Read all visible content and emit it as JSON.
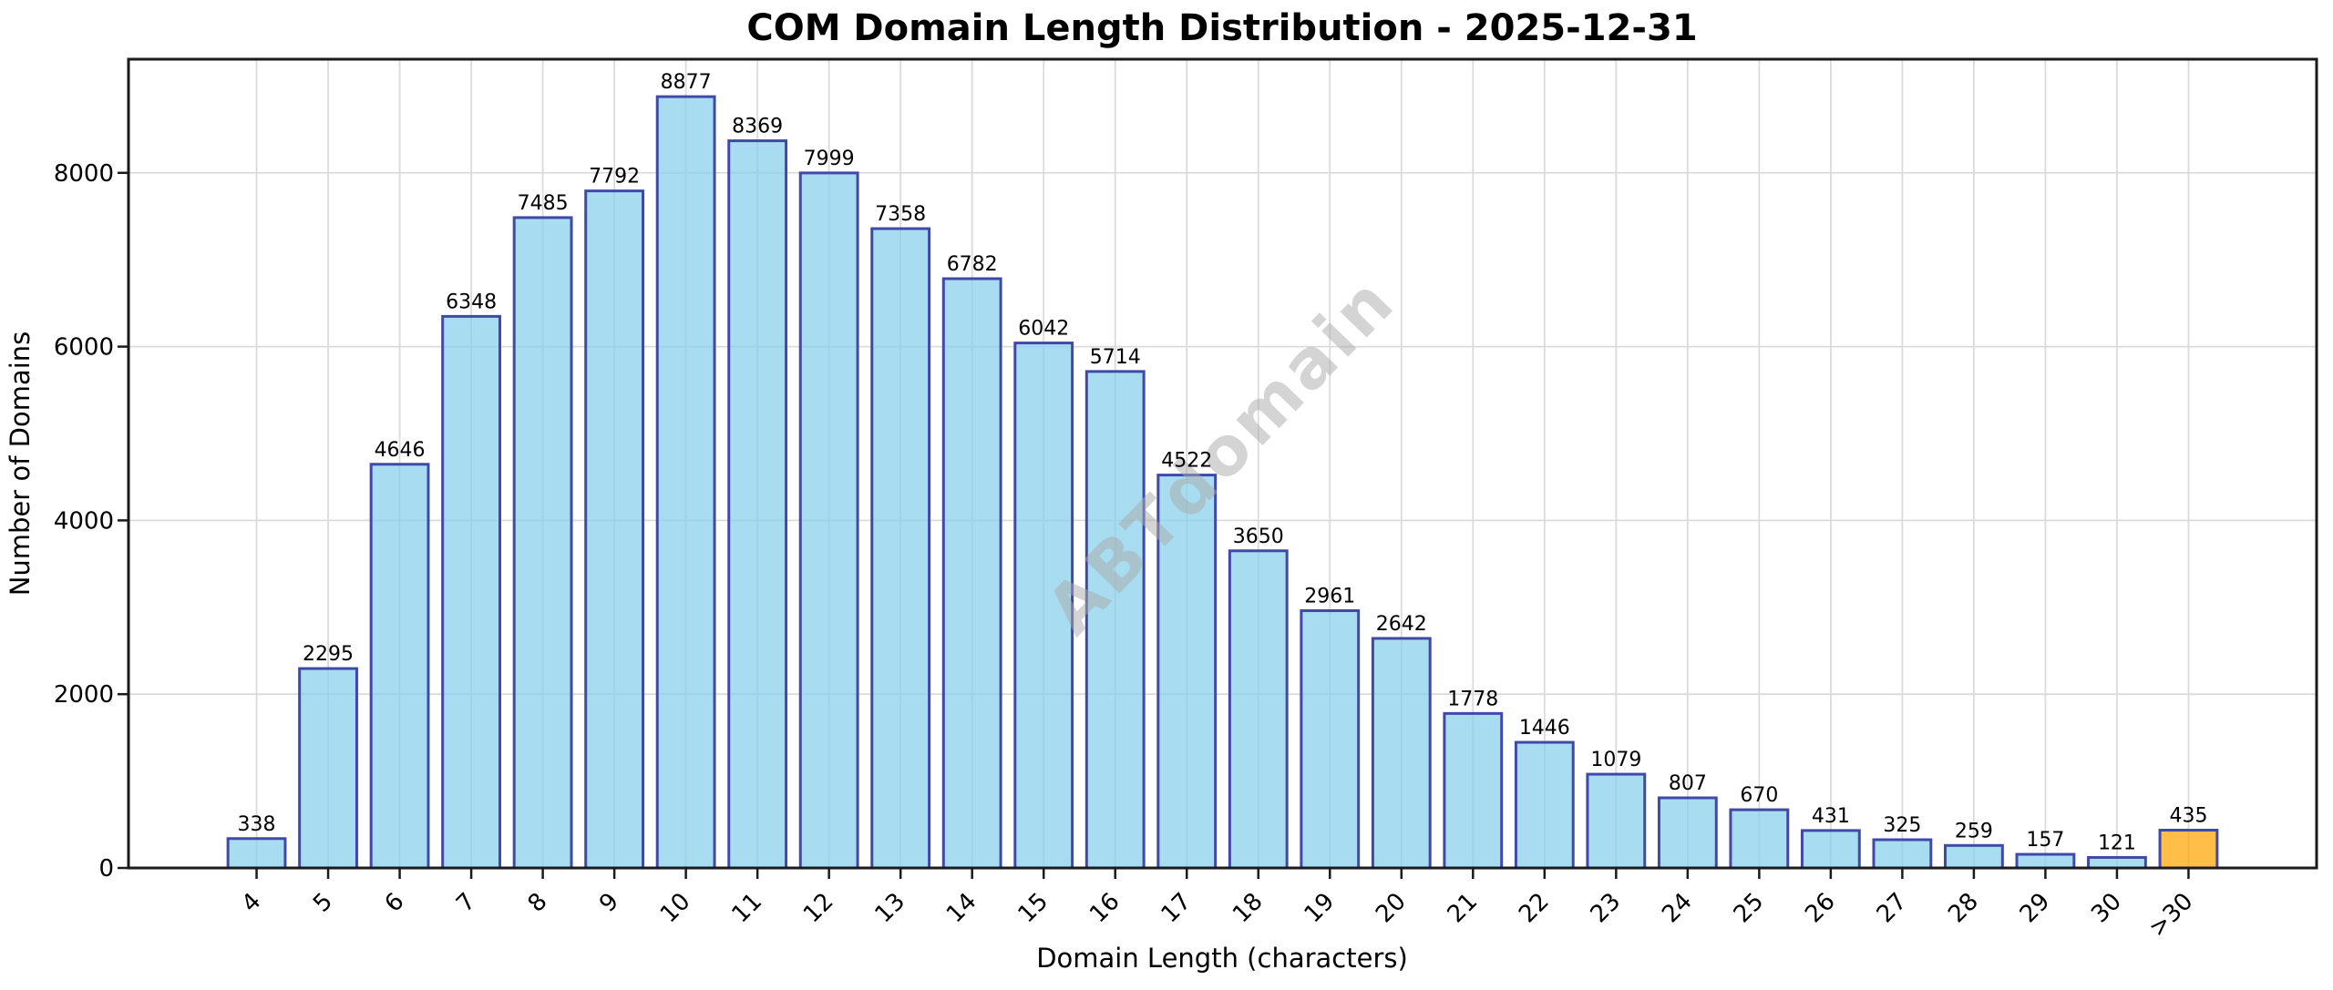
{
  "chart_data": {
    "type": "bar",
    "title": "COM Domain Length Distribution - 2025-12-31",
    "xlabel": "Domain Length (characters)",
    "ylabel": "Number of Domains",
    "categories": [
      "4",
      "5",
      "6",
      "7",
      "8",
      "9",
      "10",
      "11",
      "12",
      "13",
      "14",
      "15",
      "16",
      "17",
      "18",
      "19",
      "20",
      "21",
      "22",
      "23",
      "24",
      "25",
      "26",
      "27",
      "28",
      "29",
      "30",
      ">30"
    ],
    "values": [
      338,
      2295,
      4646,
      6348,
      7485,
      7792,
      8877,
      8369,
      7999,
      7358,
      6782,
      6042,
      5714,
      4522,
      3650,
      2961,
      2642,
      1778,
      1446,
      1079,
      807,
      670,
      431,
      325,
      259,
      157,
      121,
      435
    ],
    "highlight_category": ">30",
    "yticks": [
      0,
      2000,
      4000,
      6000,
      8000
    ],
    "ylim": [
      0,
      9308
    ],
    "grid": true,
    "legend_position": "none",
    "watermark": "ABTdomain",
    "bar_width_ratio": 0.8,
    "xtick_rotation_deg": 45,
    "colors": {
      "bar_fill": "#87CEEB",
      "bar_fill_opacity": 0.72,
      "bar_edge": "#4149A8",
      "highlight_fill": "#FFA500",
      "highlight_edge": "#4149A8",
      "grid_color": "#DBDBDB",
      "axis_color": "#1a1a1a",
      "text_color": "#000000",
      "watermark_color": "#ABABAB",
      "background": "#FFFFFF"
    }
  }
}
